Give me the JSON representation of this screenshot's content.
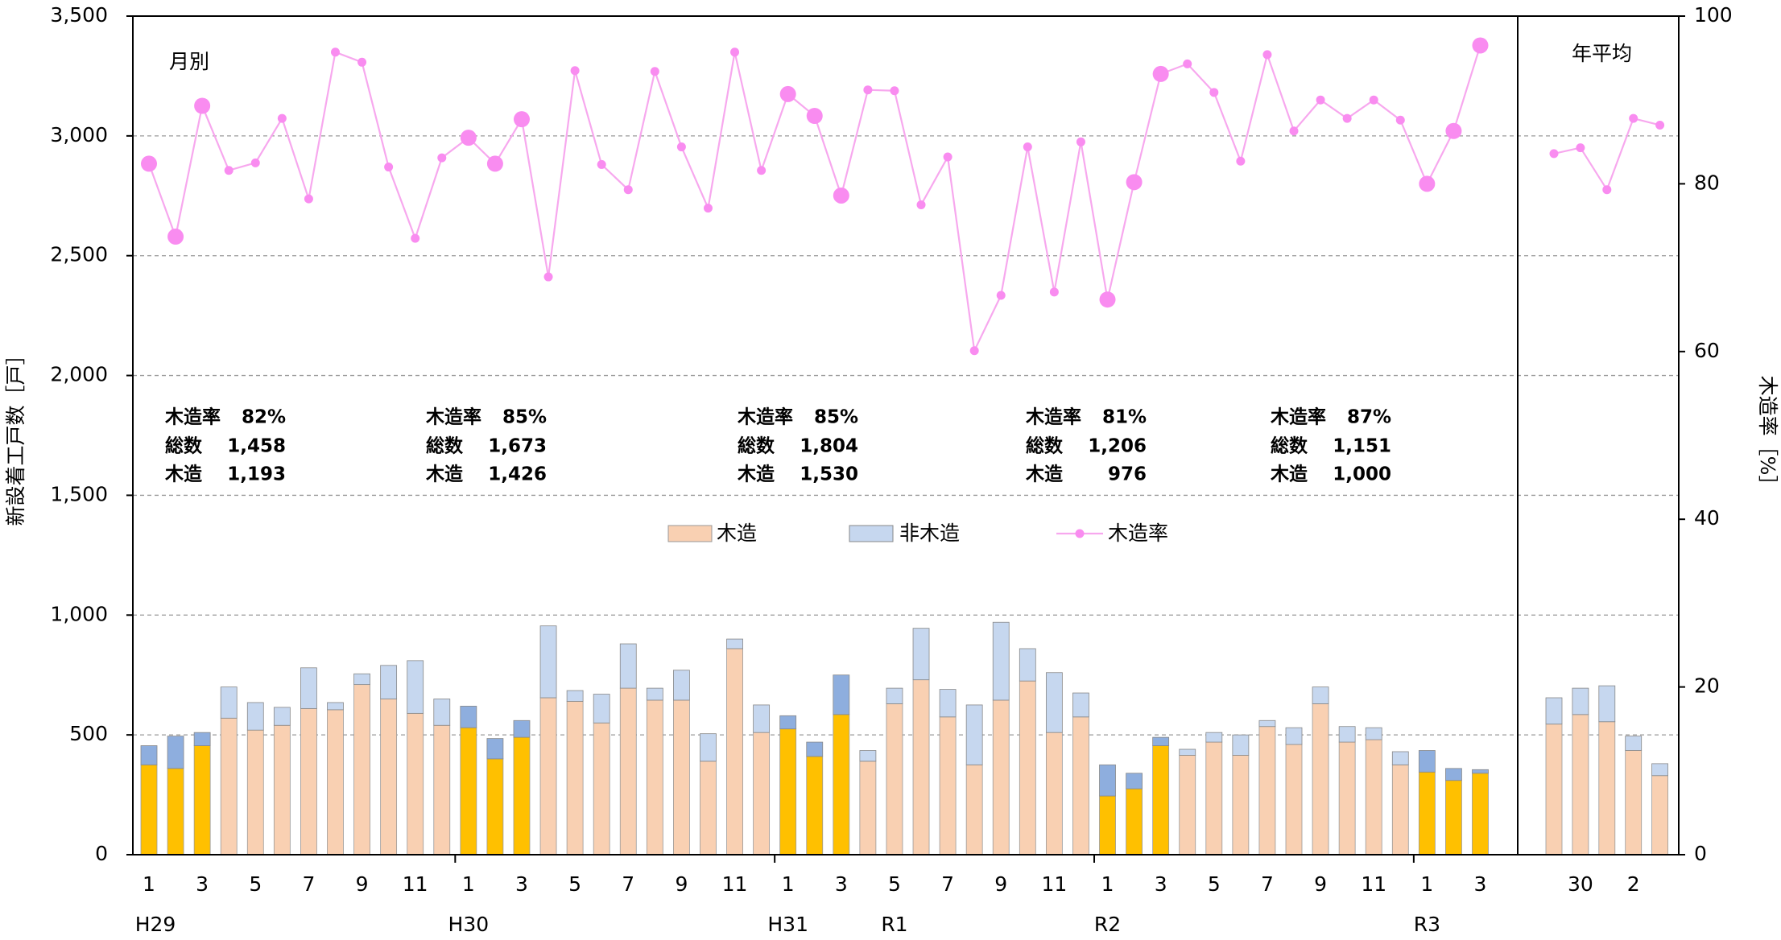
{
  "chart_data": {
    "type": "bar_line",
    "categories": [
      1,
      null,
      3,
      null,
      5,
      null,
      7,
      null,
      9,
      null,
      11,
      null,
      1,
      null,
      3,
      null,
      5,
      null,
      7,
      null,
      9,
      null,
      11,
      null,
      1,
      null,
      3,
      null,
      5,
      null,
      7,
      null,
      9,
      null,
      11,
      null,
      1,
      null,
      3,
      null,
      5,
      null,
      7,
      null,
      9,
      null,
      11,
      null,
      1,
      null,
      3
    ],
    "period_labels": [
      "H29",
      null,
      null,
      null,
      null,
      null,
      null,
      null,
      null,
      null,
      null,
      null,
      "H30",
      null,
      null,
      null,
      null,
      null,
      null,
      null,
      null,
      null,
      null,
      null,
      "H31",
      null,
      null,
      null,
      "R1",
      null,
      null,
      null,
      null,
      null,
      null,
      null,
      "R2",
      null,
      null,
      null,
      null,
      null,
      null,
      null,
      null,
      null,
      null,
      null,
      "R3",
      null,
      null
    ],
    "annual_categories": [
      null,
      30,
      null,
      2,
      null
    ],
    "panel_labels": {
      "monthly": "月別",
      "annual": "年平均"
    },
    "y_title": "新設着工戸数［戸］",
    "y2_title": "木造率［%］",
    "highlight": [
      0,
      1,
      2,
      12,
      13,
      14,
      24,
      25,
      26,
      36,
      37,
      38,
      48,
      49,
      50
    ],
    "series": [
      {
        "name": "木造",
        "color": "#f9d0b2",
        "highlight_color": "#ffc000",
        "values": [
          375,
          360,
          455,
          570,
          520,
          540,
          610,
          605,
          710,
          650,
          590,
          540,
          530,
          400,
          490,
          655,
          640,
          550,
          695,
          645,
          645,
          390,
          860,
          510,
          525,
          410,
          585,
          390,
          630,
          730,
          575,
          375,
          645,
          725,
          510,
          575,
          245,
          275,
          455,
          415,
          470,
          415,
          535,
          460,
          630,
          470,
          480,
          375,
          345,
          310,
          340
        ],
        "annual_values": [
          545,
          585,
          555,
          435,
          330
        ]
      },
      {
        "name": "非木造",
        "color": "#c6d7ef",
        "highlight_color": "#8eaede",
        "values": [
          80,
          135,
          55,
          130,
          115,
          75,
          170,
          30,
          45,
          140,
          220,
          110,
          90,
          85,
          70,
          300,
          45,
          120,
          185,
          50,
          125,
          115,
          40,
          115,
          55,
          60,
          165,
          45,
          65,
          215,
          115,
          250,
          325,
          135,
          250,
          100,
          130,
          65,
          35,
          25,
          40,
          85,
          25,
          70,
          70,
          65,
          50,
          55,
          90,
          50,
          15
        ],
        "annual_values": [
          110,
          110,
          150,
          60,
          50
        ]
      },
      {
        "name": "木造率",
        "color": "#f7a8ee",
        "marker_color": "#f98cf0",
        "axis": "y2",
        "values": [
          82.4,
          73.7,
          89.3,
          81.6,
          82.5,
          87.8,
          78.2,
          95.7,
          94.5,
          82.0,
          73.5,
          83.1,
          85.5,
          82.4,
          87.7,
          68.9,
          93.5,
          82.3,
          79.3,
          93.4,
          84.4,
          77.1,
          95.7,
          81.6,
          90.7,
          88.1,
          78.6,
          91.2,
          91.1,
          77.5,
          83.2,
          60.1,
          66.7,
          84.4,
          67.1,
          85.0,
          66.2,
          80.2,
          93.1,
          94.3,
          90.9,
          82.7,
          95.4,
          86.3,
          90.0,
          87.8,
          90.0,
          87.6,
          80.0,
          86.3,
          96.5
        ],
        "annual_values": [
          83.6,
          84.3,
          79.3,
          87.8,
          87.0
        ]
      }
    ],
    "annotation_labels": [
      "木造率",
      "総数",
      "木造"
    ],
    "annotations": [
      {
        "rate": "82%",
        "total": "1,458",
        "wood": "1,193"
      },
      {
        "rate": "85%",
        "total": "1,673",
        "wood": "1,426"
      },
      {
        "rate": "85%",
        "total": "1,804",
        "wood": "1,530"
      },
      {
        "rate": "81%",
        "total": "1,206",
        "wood": "976"
      },
      {
        "rate": "87%",
        "total": "1,151",
        "wood": "1,000"
      }
    ],
    "ylim": [
      0,
      3500
    ],
    "yticks": [
      0,
      500,
      {
        "value": 1000,
        "label": "1,000"
      },
      {
        "value": 1500,
        "label": "1,500"
      },
      {
        "value": 2000,
        "label": "2,000"
      },
      {
        "value": 2500,
        "label": "2,500"
      },
      {
        "value": 3000,
        "label": "3,000"
      },
      {
        "value": 3500,
        "label": "3,500"
      }
    ],
    "y2lim": [
      0,
      100
    ],
    "y2ticks": [
      0,
      20,
      40,
      60,
      80,
      100
    ],
    "grid": true
  }
}
